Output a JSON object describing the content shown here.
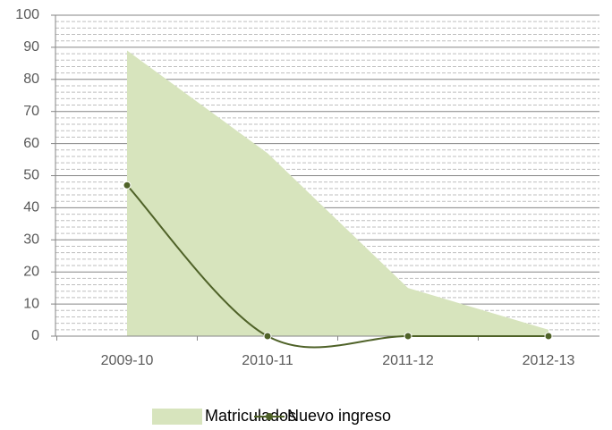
{
  "chart_data": {
    "type": "area-line",
    "categories": [
      "2009-10",
      "2010-11",
      "2011-12",
      "2012-13"
    ],
    "series": [
      {
        "name": "Matriculados",
        "type": "area",
        "color": "#d7e4bd",
        "values": [
          89,
          57,
          15,
          2
        ]
      },
      {
        "name": "Nuevo ingreso",
        "type": "line",
        "color": "#4f6228",
        "values": [
          47,
          0,
          0,
          0
        ]
      }
    ],
    "ylim": [
      0,
      100
    ],
    "yticks": [
      0,
      10,
      20,
      30,
      40,
      50,
      60,
      70,
      80,
      90,
      100
    ],
    "grid": true,
    "minor_grid": true,
    "legend": "bottom"
  }
}
